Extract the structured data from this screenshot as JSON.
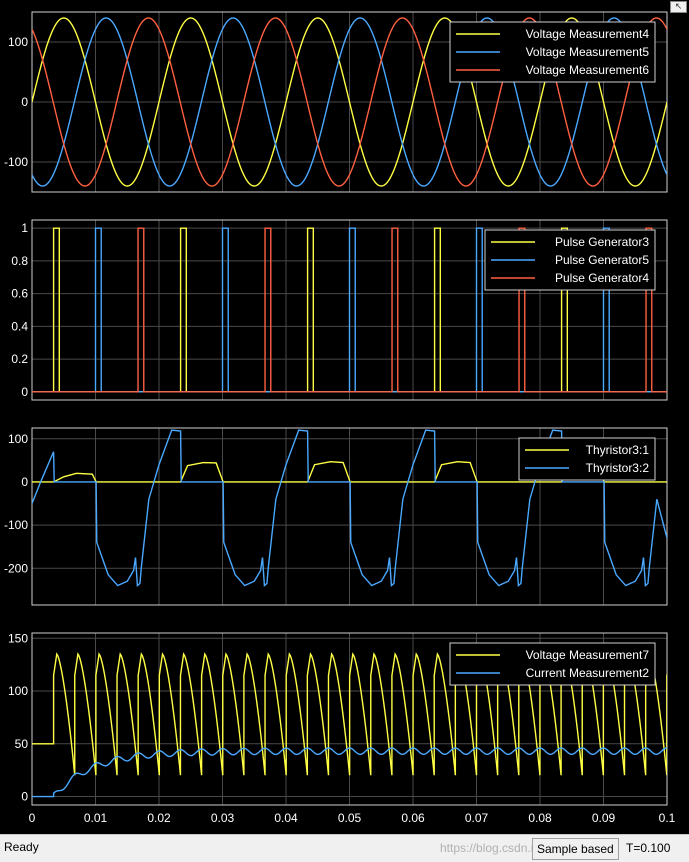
{
  "window": {
    "undock_icon": "undock-icon"
  },
  "status": {
    "ready": "Ready",
    "sample": "Sample based",
    "time": "T=0.100",
    "watermark": "https://blog.csdn.net/..."
  },
  "chart_data": [
    {
      "type": "line",
      "xlim": [
        0,
        0.1
      ],
      "ylim": [
        -150,
        150
      ],
      "yticks": [
        -100,
        0,
        100
      ],
      "legend_position": "top-right",
      "series": [
        {
          "name": "Voltage Measurement4",
          "color": "#ffff44",
          "fn": "sin",
          "amp": 140,
          "freq": 50,
          "phase_deg": 0
        },
        {
          "name": "Voltage Measurement5",
          "color": "#4aa8ff",
          "fn": "sin",
          "amp": 140,
          "freq": 50,
          "phase_deg": -120
        },
        {
          "name": "Voltage Measurement6",
          "color": "#ff6040",
          "fn": "sin",
          "amp": 140,
          "freq": 50,
          "phase_deg": 120
        }
      ]
    },
    {
      "type": "line",
      "xlim": [
        0,
        0.1
      ],
      "ylim": [
        -0.05,
        1.05
      ],
      "yticks": [
        0,
        0.2,
        0.4,
        0.6,
        0.8,
        1
      ],
      "legend_position": "top-right",
      "series": [
        {
          "name": "Pulse Generator3",
          "color": "#ffff44",
          "pulses": [
            0.0034,
            0.0234,
            0.0434,
            0.0634,
            0.0834
          ],
          "width": 0.0009
        },
        {
          "name": "Pulse Generator5",
          "color": "#4aa8ff",
          "pulses": [
            0.01,
            0.03,
            0.05,
            0.07,
            0.09
          ],
          "width": 0.0009
        },
        {
          "name": "Pulse Generator4",
          "color": "#ff6040",
          "pulses": [
            0.0167,
            0.0367,
            0.0567,
            0.0767,
            0.0967
          ],
          "width": 0.0009
        }
      ]
    },
    {
      "type": "line",
      "xlim": [
        0,
        0.1
      ],
      "ylim": [
        -285,
        125
      ],
      "yticks": [
        -200,
        -100,
        0,
        100
      ],
      "legend_position": "top-right",
      "series": [
        {
          "name": "Thyristor3:1",
          "color": "#ffff44",
          "points": [
            [
              0,
              0
            ],
            [
              0.0034,
              0
            ],
            [
              0.005,
              12
            ],
            [
              0.007,
              20
            ],
            [
              0.0095,
              18
            ],
            [
              0.0101,
              0
            ],
            [
              0.0234,
              0
            ],
            [
              0.0245,
              38
            ],
            [
              0.027,
              45
            ],
            [
              0.029,
              44
            ],
            [
              0.0301,
              0
            ],
            [
              0.0434,
              0
            ],
            [
              0.0445,
              40
            ],
            [
              0.047,
              47
            ],
            [
              0.049,
              45
            ],
            [
              0.0501,
              0
            ],
            [
              0.0634,
              0
            ],
            [
              0.0645,
              40
            ],
            [
              0.067,
              47
            ],
            [
              0.069,
              45
            ],
            [
              0.0701,
              0
            ],
            [
              0.0834,
              0
            ],
            [
              0.0845,
              40
            ],
            [
              0.087,
              47
            ],
            [
              0.089,
              45
            ],
            [
              0.0901,
              0
            ],
            [
              0.1,
              0
            ]
          ]
        },
        {
          "name": "Thyristor3:2",
          "color": "#4aa8ff",
          "points": [
            [
              0,
              -50
            ],
            [
              0.0015,
              5
            ],
            [
              0.0034,
              70
            ],
            [
              0.0035,
              0
            ],
            [
              0.0101,
              0
            ],
            [
              0.0102,
              -140
            ],
            [
              0.012,
              -215
            ],
            [
              0.0135,
              -240
            ],
            [
              0.015,
              -230
            ],
            [
              0.016,
              -205
            ],
            [
              0.0163,
              -175
            ],
            [
              0.0166,
              -240
            ],
            [
              0.017,
              -235
            ],
            [
              0.0172,
              -200
            ],
            [
              0.0184,
              -40
            ],
            [
              0.02,
              40
            ],
            [
              0.022,
              120
            ],
            [
              0.0234,
              118
            ],
            [
              0.0235,
              0
            ],
            [
              0.0301,
              0
            ],
            [
              0.0302,
              -140
            ],
            [
              0.032,
              -215
            ],
            [
              0.0335,
              -240
            ],
            [
              0.035,
              -230
            ],
            [
              0.036,
              -205
            ],
            [
              0.0363,
              -175
            ],
            [
              0.0366,
              -240
            ],
            [
              0.037,
              -235
            ],
            [
              0.0372,
              -200
            ],
            [
              0.0384,
              -40
            ],
            [
              0.04,
              40
            ],
            [
              0.042,
              120
            ],
            [
              0.0434,
              118
            ],
            [
              0.0435,
              0
            ],
            [
              0.0501,
              0
            ],
            [
              0.0502,
              -140
            ],
            [
              0.052,
              -215
            ],
            [
              0.0535,
              -240
            ],
            [
              0.055,
              -230
            ],
            [
              0.056,
              -205
            ],
            [
              0.0563,
              -175
            ],
            [
              0.0566,
              -240
            ],
            [
              0.057,
              -235
            ],
            [
              0.0572,
              -200
            ],
            [
              0.0584,
              -40
            ],
            [
              0.06,
              40
            ],
            [
              0.062,
              120
            ],
            [
              0.0634,
              118
            ],
            [
              0.0635,
              0
            ],
            [
              0.0701,
              0
            ],
            [
              0.0702,
              -140
            ],
            [
              0.072,
              -215
            ],
            [
              0.0735,
              -240
            ],
            [
              0.075,
              -230
            ],
            [
              0.076,
              -205
            ],
            [
              0.0763,
              -175
            ],
            [
              0.0766,
              -240
            ],
            [
              0.077,
              -235
            ],
            [
              0.0772,
              -200
            ],
            [
              0.0784,
              -40
            ],
            [
              0.08,
              40
            ],
            [
              0.082,
              120
            ],
            [
              0.0834,
              118
            ],
            [
              0.0835,
              0
            ],
            [
              0.0901,
              0
            ],
            [
              0.0902,
              -140
            ],
            [
              0.092,
              -215
            ],
            [
              0.0935,
              -240
            ],
            [
              0.095,
              -230
            ],
            [
              0.096,
              -205
            ],
            [
              0.0963,
              -175
            ],
            [
              0.0966,
              -240
            ],
            [
              0.097,
              -235
            ],
            [
              0.0972,
              -200
            ],
            [
              0.0984,
              -40
            ],
            [
              0.1,
              -130
            ]
          ]
        }
      ]
    },
    {
      "type": "line",
      "xlim": [
        0,
        0.1
      ],
      "ylim": [
        -8,
        155
      ],
      "xticks": [
        0,
        0.01,
        0.02,
        0.03,
        0.04,
        0.05,
        0.06,
        0.07,
        0.08,
        0.09,
        0.1
      ],
      "yticks": [
        0,
        50,
        100,
        150
      ],
      "legend_position": "top-right",
      "series": [
        {
          "name": "Voltage Measurement7",
          "color": "#ffff44",
          "rectified": {
            "start": 0.0034,
            "period": 0.00333,
            "peak": 135,
            "initial": 50
          }
        },
        {
          "name": "Current Measurement2",
          "color": "#4aa8ff",
          "current": {
            "start": 0.0034,
            "period": 0.00333,
            "steady": 43,
            "ripple": 6,
            "tau": 0.006
          }
        }
      ]
    }
  ]
}
